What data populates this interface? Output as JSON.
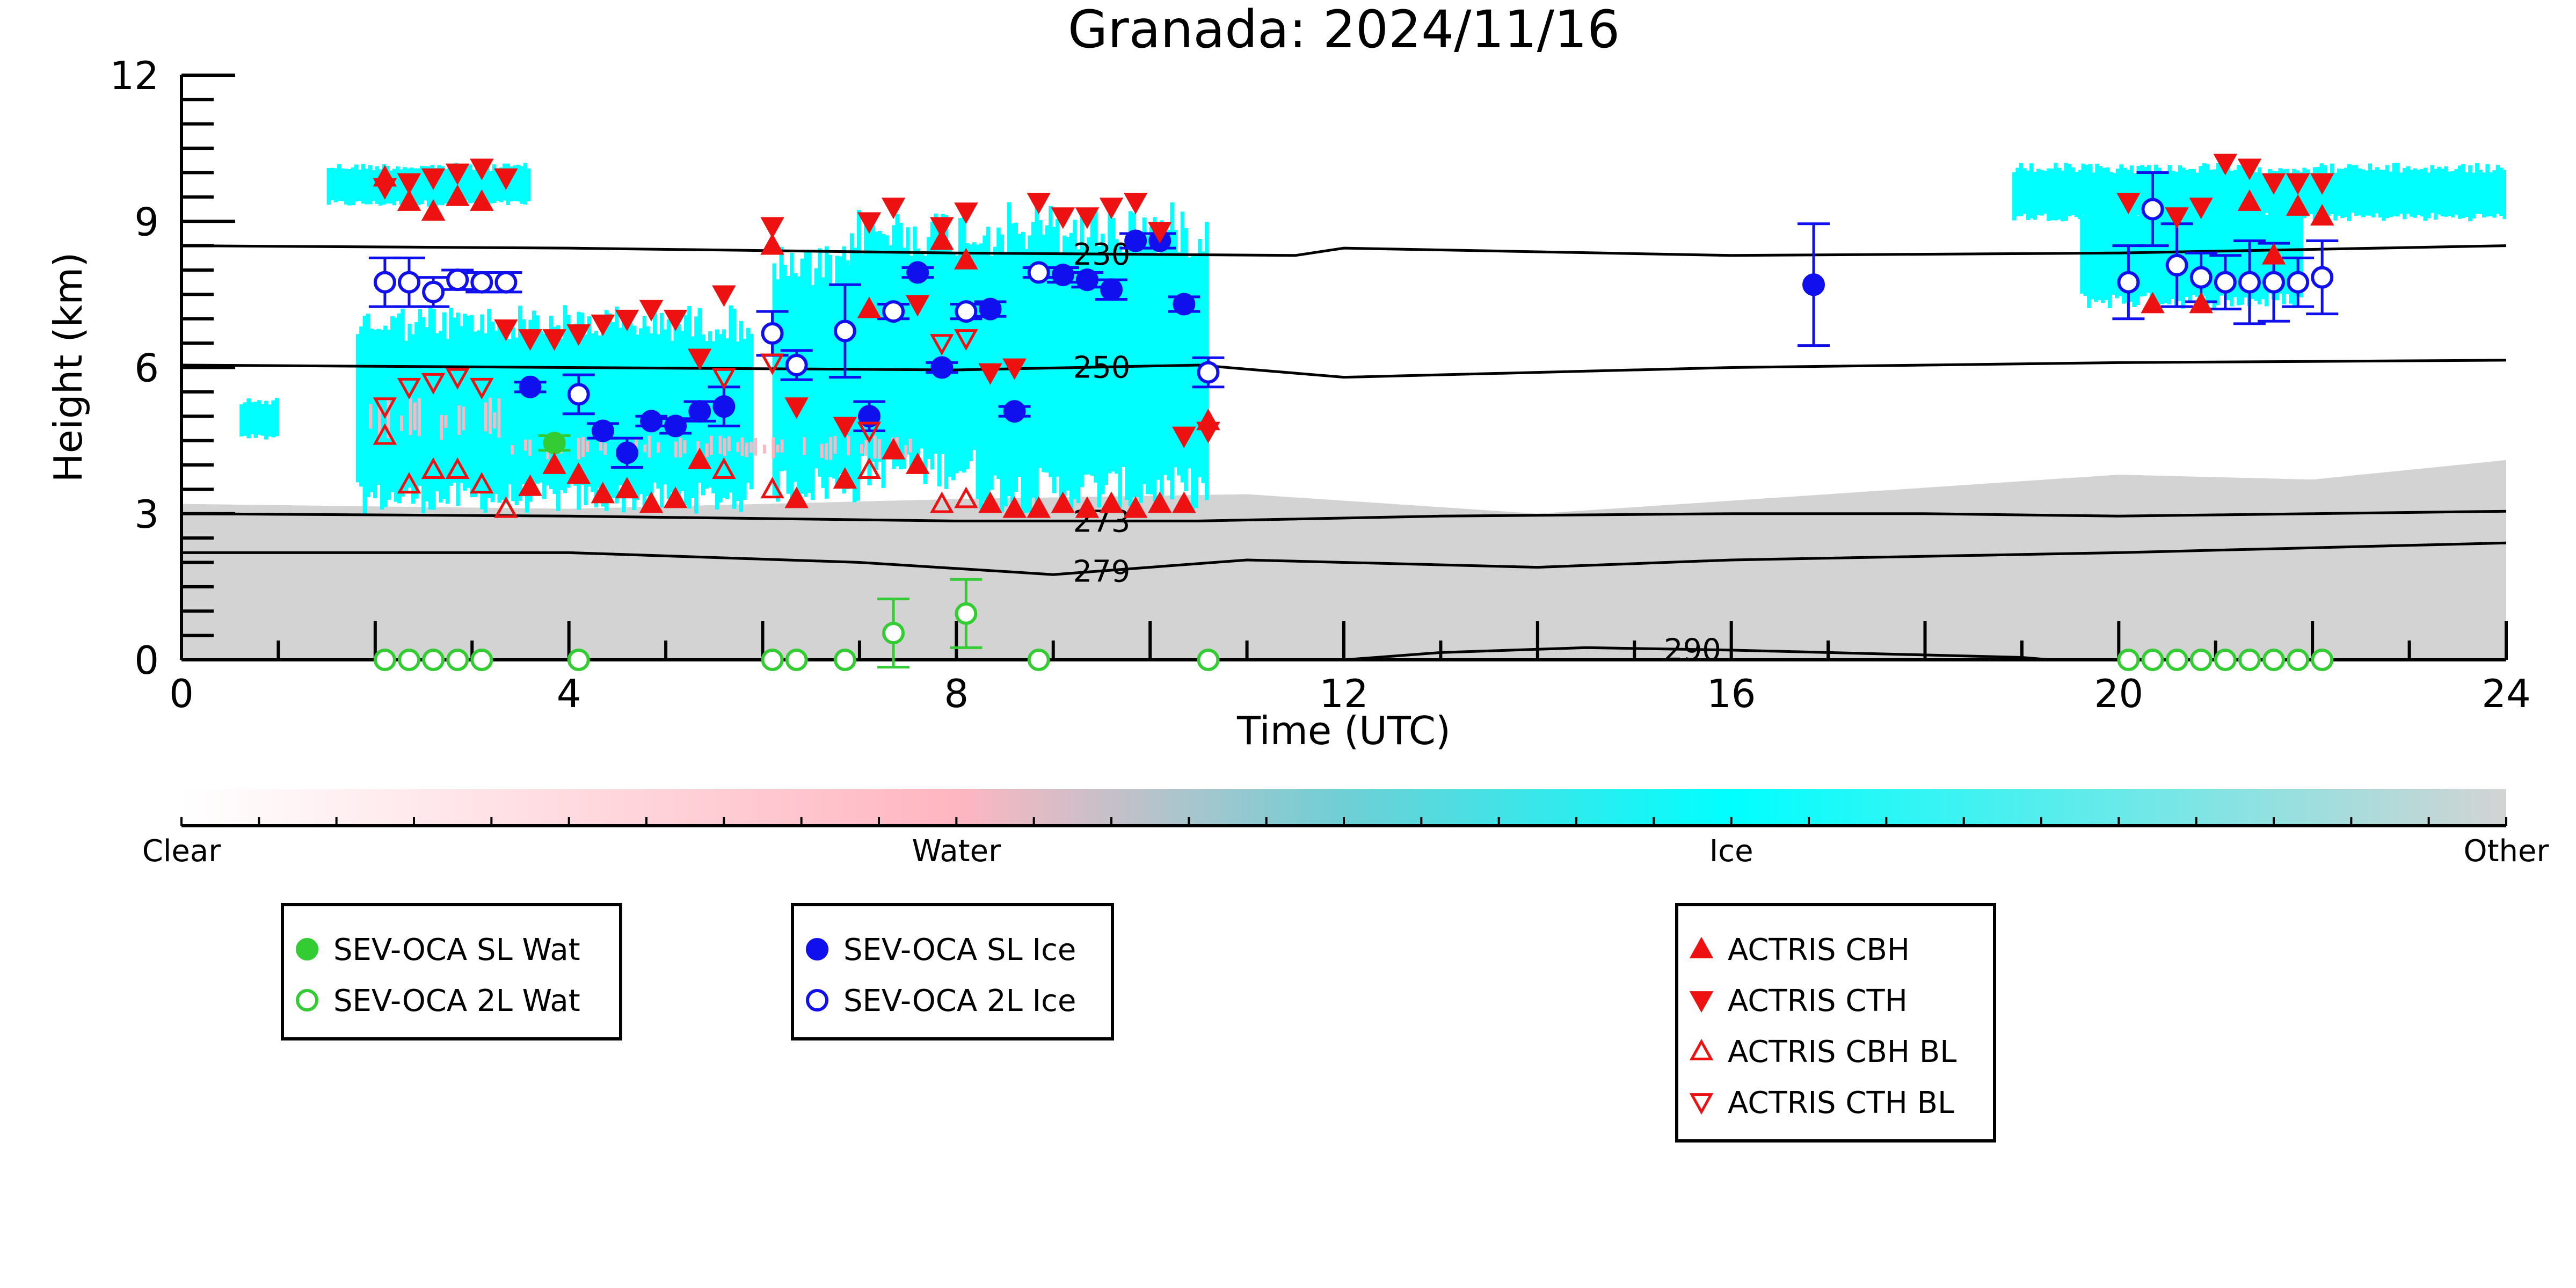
{
  "chart_data": {
    "type": "scatter",
    "title": "Granada: 2024/11/16",
    "xlabel": "Time (UTC)",
    "ylabel": "Height (km)",
    "xlim": [
      0,
      24
    ],
    "ylim": [
      0,
      12
    ],
    "x_ticks": [
      "0",
      "4",
      "8",
      "12",
      "16",
      "20",
      "24"
    ],
    "y_ticks": [
      "0",
      "3",
      "6",
      "9",
      "12"
    ],
    "grid": false,
    "colorbar": {
      "labels": [
        "Clear",
        "Water",
        "Ice",
        "Other"
      ],
      "colors": [
        "#ffffff",
        "#ffb6c1",
        "#00ffff",
        "#d3d3d3"
      ]
    },
    "background": {
      "other_color": "#d3d3d3",
      "ice_color": "#00ffff",
      "water_color": "#ffb6c1",
      "other_top_km": [
        {
          "x": 0,
          "h": 3.2
        },
        {
          "x": 4,
          "h": 3.1
        },
        {
          "x": 8,
          "h": 3.3
        },
        {
          "x": 11,
          "h": 3.4
        },
        {
          "x": 14,
          "h": 3.0
        },
        {
          "x": 17,
          "h": 3.4
        },
        {
          "x": 20,
          "h": 3.8
        },
        {
          "x": 22,
          "h": 3.7
        },
        {
          "x": 24,
          "h": 4.1
        }
      ],
      "ice_regions": [
        {
          "x0": 1.5,
          "x1": 3.6,
          "y0": 9.3,
          "y1": 10.2
        },
        {
          "x0": 1.8,
          "x1": 5.9,
          "y0": 3.0,
          "y1": 7.3
        },
        {
          "x0": 6.1,
          "x1": 7.0,
          "y0": 3.2,
          "y1": 8.5
        },
        {
          "x0": 6.9,
          "x1": 8.2,
          "y0": 3.5,
          "y1": 9.3
        },
        {
          "x0": 8.2,
          "x1": 10.6,
          "y0": 3.0,
          "y1": 9.4
        },
        {
          "x0": 0.6,
          "x1": 1.0,
          "y0": 4.5,
          "y1": 5.4
        },
        {
          "x0": 19.6,
          "x1": 21.9,
          "y0": 7.2,
          "y1": 9.5
        },
        {
          "x0": 18.9,
          "x1": 24.0,
          "y0": 9.0,
          "y1": 10.2
        }
      ],
      "water_regions": [
        {
          "x0": 1.8,
          "x1": 3.4,
          "y0": 4.4,
          "y1": 5.4
        },
        {
          "x0": 3.4,
          "x1": 7.6,
          "y0": 4.1,
          "y1": 4.6
        }
      ]
    },
    "contours": [
      {
        "label": "230",
        "label_x": 9.5,
        "points": [
          [
            0,
            8.5
          ],
          [
            4,
            8.45
          ],
          [
            8,
            8.35
          ],
          [
            11.5,
            8.3
          ],
          [
            12,
            8.45
          ],
          [
            16,
            8.3
          ],
          [
            20,
            8.35
          ],
          [
            24,
            8.5
          ]
        ]
      },
      {
        "label": "250",
        "label_x": 9.5,
        "points": [
          [
            0,
            6.05
          ],
          [
            4,
            6.0
          ],
          [
            8,
            5.95
          ],
          [
            10.5,
            6.05
          ],
          [
            12,
            5.8
          ],
          [
            16,
            6.0
          ],
          [
            20,
            6.1
          ],
          [
            24,
            6.15
          ]
        ]
      },
      {
        "label": "273",
        "label_x": 9.5,
        "points": [
          [
            0,
            3.0
          ],
          [
            4,
            2.95
          ],
          [
            8,
            2.85
          ],
          [
            10.5,
            2.85
          ],
          [
            13,
            2.95
          ],
          [
            16,
            3.0
          ],
          [
            18,
            3.0
          ],
          [
            20,
            2.95
          ],
          [
            24,
            3.05
          ]
        ]
      },
      {
        "label": "279",
        "label_x": 9.5,
        "points": [
          [
            0,
            2.2
          ],
          [
            4,
            2.2
          ],
          [
            7,
            2.0
          ],
          [
            9,
            1.75
          ],
          [
            11,
            2.05
          ],
          [
            14,
            1.9
          ],
          [
            16,
            2.05
          ],
          [
            20,
            2.2
          ],
          [
            24,
            2.4
          ]
        ]
      },
      {
        "label": "290",
        "label_x": 15.6,
        "points": [
          [
            12,
            0.0
          ],
          [
            13,
            0.15
          ],
          [
            14.5,
            0.25
          ],
          [
            16,
            0.2
          ],
          [
            19,
            0.05
          ],
          [
            19.3,
            0.0
          ]
        ]
      }
    ],
    "series": [
      {
        "name": "SEV-OCA SL Wat",
        "marker": "circle",
        "filled": true,
        "color": "#33cc33",
        "points": [
          {
            "x": 3.85,
            "y": 4.45,
            "err": 0.15
          }
        ]
      },
      {
        "name": "SEV-OCA 2L Wat",
        "marker": "circle",
        "filled": false,
        "color": "#33cc33",
        "points": [
          {
            "x": 2.1,
            "y": 0.0
          },
          {
            "x": 2.35,
            "y": 0.0
          },
          {
            "x": 2.6,
            "y": 0.0
          },
          {
            "x": 2.85,
            "y": 0.0
          },
          {
            "x": 3.1,
            "y": 0.0
          },
          {
            "x": 4.1,
            "y": 0.0
          },
          {
            "x": 6.1,
            "y": 0.0
          },
          {
            "x": 6.35,
            "y": 0.0
          },
          {
            "x": 6.85,
            "y": 0.0
          },
          {
            "x": 7.35,
            "y": 0.55,
            "err": 0.7
          },
          {
            "x": 8.1,
            "y": 0.95,
            "err": 0.7
          },
          {
            "x": 8.85,
            "y": 0.0
          },
          {
            "x": 10.6,
            "y": 0.0
          },
          {
            "x": 20.1,
            "y": 0.0
          },
          {
            "x": 20.35,
            "y": 0.0
          },
          {
            "x": 20.6,
            "y": 0.0
          },
          {
            "x": 20.85,
            "y": 0.0
          },
          {
            "x": 21.1,
            "y": 0.0
          },
          {
            "x": 21.35,
            "y": 0.0
          },
          {
            "x": 21.6,
            "y": 0.0
          },
          {
            "x": 21.85,
            "y": 0.0
          },
          {
            "x": 22.1,
            "y": 0.0
          }
        ]
      },
      {
        "name": "SEV-OCA SL Ice",
        "marker": "circle",
        "filled": true,
        "color": "#1010ee",
        "points": [
          {
            "x": 3.6,
            "y": 5.6,
            "err": 0.1
          },
          {
            "x": 4.35,
            "y": 4.7,
            "err": 0.15
          },
          {
            "x": 4.6,
            "y": 4.25,
            "err": 0.3
          },
          {
            "x": 4.85,
            "y": 4.9,
            "err": 0.1
          },
          {
            "x": 5.1,
            "y": 4.8,
            "err": 0.15
          },
          {
            "x": 5.35,
            "y": 5.1,
            "err": 0.2
          },
          {
            "x": 5.6,
            "y": 5.2,
            "err": 0.4
          },
          {
            "x": 7.1,
            "y": 5.0,
            "err": 0.3
          },
          {
            "x": 7.6,
            "y": 7.95,
            "err": 0.1
          },
          {
            "x": 7.85,
            "y": 6.0,
            "err": 0.1
          },
          {
            "x": 8.35,
            "y": 7.2,
            "err": 0.15
          },
          {
            "x": 8.6,
            "y": 5.1,
            "err": 0.1
          },
          {
            "x": 9.1,
            "y": 7.9,
            "err": 0.15
          },
          {
            "x": 9.35,
            "y": 7.8,
            "err": 0.15
          },
          {
            "x": 9.6,
            "y": 7.6,
            "err": 0.2
          },
          {
            "x": 9.85,
            "y": 8.6,
            "err": 0.15
          },
          {
            "x": 10.1,
            "y": 8.6,
            "err": 0.15
          },
          {
            "x": 10.35,
            "y": 7.3,
            "err": 0.15
          },
          {
            "x": 16.85,
            "y": 7.7,
            "err": 1.25
          }
        ]
      },
      {
        "name": "SEV-OCA 2L Ice",
        "marker": "circle",
        "filled": false,
        "color": "#1010ee",
        "points": [
          {
            "x": 2.1,
            "y": 7.75,
            "err": 0.5
          },
          {
            "x": 2.35,
            "y": 7.75,
            "err": 0.5
          },
          {
            "x": 2.6,
            "y": 7.55,
            "err": 0.3
          },
          {
            "x": 2.85,
            "y": 7.8,
            "err": 0.2
          },
          {
            "x": 3.1,
            "y": 7.75,
            "err": 0.2
          },
          {
            "x": 3.35,
            "y": 7.75,
            "err": 0.2
          },
          {
            "x": 4.1,
            "y": 5.45,
            "err": 0.4
          },
          {
            "x": 6.1,
            "y": 6.7,
            "err": 0.45
          },
          {
            "x": 6.35,
            "y": 6.05,
            "err": 0.3
          },
          {
            "x": 6.85,
            "y": 6.75,
            "err": 0.95
          },
          {
            "x": 7.35,
            "y": 7.15,
            "err": 0.15
          },
          {
            "x": 8.1,
            "y": 7.15,
            "err": 0.15
          },
          {
            "x": 8.85,
            "y": 7.95,
            "err": 0.1
          },
          {
            "x": 10.6,
            "y": 5.9,
            "err": 0.3
          },
          {
            "x": 20.1,
            "y": 7.75,
            "err": 0.75
          },
          {
            "x": 20.35,
            "y": 9.25,
            "err": 0.75
          },
          {
            "x": 20.6,
            "y": 8.1,
            "err": 0.85
          },
          {
            "x": 20.85,
            "y": 7.85,
            "err": 0.5
          },
          {
            "x": 21.1,
            "y": 7.75,
            "err": 0.55
          },
          {
            "x": 21.35,
            "y": 7.75,
            "err": 0.85
          },
          {
            "x": 21.6,
            "y": 7.75,
            "err": 0.8
          },
          {
            "x": 21.85,
            "y": 7.75,
            "err": 0.5
          },
          {
            "x": 22.1,
            "y": 7.85,
            "err": 0.75
          }
        ]
      },
      {
        "name": "ACTRIS CBH",
        "marker": "triangle-up",
        "filled": true,
        "color": "#ee1111",
        "points": [
          {
            "x": 2.1,
            "y": 9.9
          },
          {
            "x": 2.35,
            "y": 9.4
          },
          {
            "x": 2.6,
            "y": 9.2
          },
          {
            "x": 2.85,
            "y": 9.5
          },
          {
            "x": 3.1,
            "y": 9.4
          },
          {
            "x": 3.6,
            "y": 3.55
          },
          {
            "x": 3.85,
            "y": 4.0
          },
          {
            "x": 4.1,
            "y": 3.8
          },
          {
            "x": 4.35,
            "y": 3.4
          },
          {
            "x": 4.6,
            "y": 3.5
          },
          {
            "x": 4.85,
            "y": 3.2
          },
          {
            "x": 5.1,
            "y": 3.3
          },
          {
            "x": 5.35,
            "y": 4.1
          },
          {
            "x": 6.1,
            "y": 8.5
          },
          {
            "x": 6.35,
            "y": 3.3
          },
          {
            "x": 6.85,
            "y": 3.7
          },
          {
            "x": 7.1,
            "y": 7.2
          },
          {
            "x": 7.35,
            "y": 4.3
          },
          {
            "x": 7.6,
            "y": 4.0
          },
          {
            "x": 7.85,
            "y": 8.6
          },
          {
            "x": 8.1,
            "y": 8.2
          },
          {
            "x": 8.35,
            "y": 3.2
          },
          {
            "x": 8.6,
            "y": 3.1
          },
          {
            "x": 8.85,
            "y": 3.1
          },
          {
            "x": 9.1,
            "y": 3.2
          },
          {
            "x": 9.35,
            "y": 3.1
          },
          {
            "x": 9.6,
            "y": 3.2
          },
          {
            "x": 9.85,
            "y": 3.1
          },
          {
            "x": 10.1,
            "y": 3.2
          },
          {
            "x": 10.35,
            "y": 3.2
          },
          {
            "x": 10.6,
            "y": 4.9
          },
          {
            "x": 20.35,
            "y": 7.3
          },
          {
            "x": 20.85,
            "y": 7.3
          },
          {
            "x": 21.35,
            "y": 9.4
          },
          {
            "x": 21.6,
            "y": 8.3
          },
          {
            "x": 21.85,
            "y": 9.3
          },
          {
            "x": 22.1,
            "y": 9.1
          }
        ]
      },
      {
        "name": "ACTRIS CTH",
        "marker": "triangle-down",
        "filled": true,
        "color": "#ee1111",
        "points": [
          {
            "x": 2.1,
            "y": 9.7
          },
          {
            "x": 2.35,
            "y": 9.8
          },
          {
            "x": 2.6,
            "y": 9.9
          },
          {
            "x": 2.85,
            "y": 10.0
          },
          {
            "x": 3.1,
            "y": 10.1
          },
          {
            "x": 3.35,
            "y": 9.9
          },
          {
            "x": 3.35,
            "y": 6.8
          },
          {
            "x": 3.6,
            "y": 6.6
          },
          {
            "x": 3.85,
            "y": 6.6
          },
          {
            "x": 4.1,
            "y": 6.7
          },
          {
            "x": 4.35,
            "y": 6.9
          },
          {
            "x": 4.6,
            "y": 7.0
          },
          {
            "x": 4.85,
            "y": 7.2
          },
          {
            "x": 5.1,
            "y": 7.0
          },
          {
            "x": 5.35,
            "y": 6.2
          },
          {
            "x": 5.6,
            "y": 7.5
          },
          {
            "x": 6.1,
            "y": 8.9
          },
          {
            "x": 6.35,
            "y": 5.2
          },
          {
            "x": 6.85,
            "y": 4.8
          },
          {
            "x": 7.1,
            "y": 9.0
          },
          {
            "x": 7.35,
            "y": 9.3
          },
          {
            "x": 7.6,
            "y": 7.3
          },
          {
            "x": 7.85,
            "y": 8.9
          },
          {
            "x": 8.1,
            "y": 9.2
          },
          {
            "x": 8.35,
            "y": 5.9
          },
          {
            "x": 8.6,
            "y": 6.0
          },
          {
            "x": 8.85,
            "y": 9.4
          },
          {
            "x": 9.1,
            "y": 9.1
          },
          {
            "x": 9.35,
            "y": 9.1
          },
          {
            "x": 9.6,
            "y": 9.3
          },
          {
            "x": 9.85,
            "y": 9.4
          },
          {
            "x": 10.1,
            "y": 8.8
          },
          {
            "x": 10.35,
            "y": 4.6
          },
          {
            "x": 10.6,
            "y": 4.7
          },
          {
            "x": 20.1,
            "y": 9.4
          },
          {
            "x": 20.6,
            "y": 9.1
          },
          {
            "x": 20.85,
            "y": 9.3
          },
          {
            "x": 21.1,
            "y": 10.2
          },
          {
            "x": 21.35,
            "y": 10.1
          },
          {
            "x": 21.6,
            "y": 9.8
          },
          {
            "x": 21.85,
            "y": 9.8
          },
          {
            "x": 22.1,
            "y": 9.8
          }
        ]
      },
      {
        "name": "ACTRIS CBH BL",
        "marker": "triangle-up",
        "filled": false,
        "color": "#ee1111",
        "points": [
          {
            "x": 2.1,
            "y": 4.6
          },
          {
            "x": 2.35,
            "y": 3.6
          },
          {
            "x": 2.6,
            "y": 3.9
          },
          {
            "x": 2.85,
            "y": 3.9
          },
          {
            "x": 3.1,
            "y": 3.6
          },
          {
            "x": 3.35,
            "y": 3.1
          },
          {
            "x": 5.6,
            "y": 3.9
          },
          {
            "x": 6.1,
            "y": 3.5
          },
          {
            "x": 7.1,
            "y": 3.9
          },
          {
            "x": 7.85,
            "y": 3.2
          },
          {
            "x": 8.1,
            "y": 3.3
          }
        ]
      },
      {
        "name": "ACTRIS CTH BL",
        "marker": "triangle-down",
        "filled": false,
        "color": "#ee1111",
        "points": [
          {
            "x": 2.1,
            "y": 5.2
          },
          {
            "x": 2.35,
            "y": 5.6
          },
          {
            "x": 2.6,
            "y": 5.7
          },
          {
            "x": 2.85,
            "y": 5.8
          },
          {
            "x": 3.1,
            "y": 5.6
          },
          {
            "x": 5.6,
            "y": 5.8
          },
          {
            "x": 6.1,
            "y": 6.1
          },
          {
            "x": 7.1,
            "y": 4.7
          },
          {
            "x": 7.85,
            "y": 6.5
          },
          {
            "x": 8.1,
            "y": 6.6
          }
        ]
      }
    ],
    "legends": [
      [
        "SEV-OCA SL Wat",
        "SEV-OCA 2L Wat"
      ],
      [
        "SEV-OCA SL Ice",
        "SEV-OCA 2L Ice"
      ],
      [
        "ACTRIS CBH",
        "ACTRIS CTH",
        "ACTRIS CBH BL",
        "ACTRIS CTH BL"
      ]
    ]
  }
}
